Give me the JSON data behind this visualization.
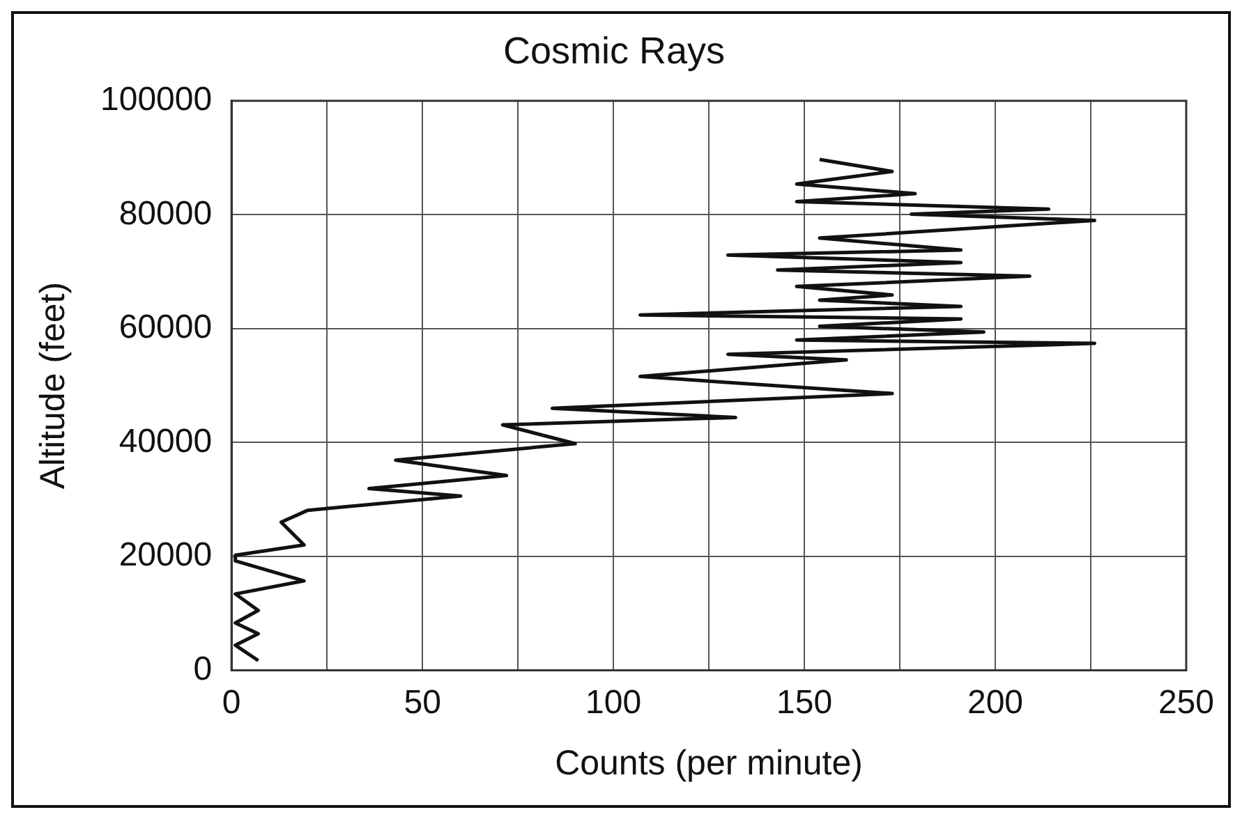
{
  "chart_data": {
    "type": "line",
    "title": "Cosmic Rays",
    "xlabel": "Counts (per minute)",
    "ylabel": "Altitude (feet)",
    "x": [
      7,
      1,
      7,
      1,
      7,
      1,
      19,
      1,
      1,
      19,
      13,
      20,
      60,
      36,
      72,
      43,
      90,
      71,
      132,
      84,
      173,
      107,
      161,
      130,
      226,
      148,
      197,
      154,
      191,
      107,
      191,
      154,
      173,
      148,
      209,
      143,
      191,
      130,
      191,
      154,
      226,
      178,
      214,
      148,
      179,
      148,
      173,
      154
    ],
    "series": [
      {
        "color": "#111111",
        "values": [
          1700,
          4400,
          6400,
          8300,
          10500,
          13400,
          15700,
          19200,
          20200,
          22000,
          26000,
          28100,
          30600,
          31900,
          34200,
          36900,
          39800,
          43100,
          44400,
          46000,
          48600,
          51600,
          54500,
          55500,
          57400,
          58000,
          59400,
          60400,
          61700,
          62400,
          63900,
          65000,
          65900,
          67400,
          69200,
          70300,
          71600,
          72900,
          73800,
          75900,
          79000,
          80100,
          81000,
          82300,
          83700,
          85400,
          87600,
          89700
        ]
      }
    ],
    "xlim": [
      0,
      250
    ],
    "xticks": [
      0,
      {
        "value": 25,
        "label": null
      },
      50,
      {
        "value": 75,
        "label": null
      },
      100,
      {
        "value": 125,
        "label": null
      },
      150,
      {
        "value": 175,
        "label": null
      },
      200,
      {
        "value": 225,
        "label": null
      },
      250
    ],
    "ylim": [
      0,
      100000
    ],
    "yticks": [
      0,
      20000,
      40000,
      60000,
      80000,
      100000
    ],
    "grid": true,
    "legend": false
  }
}
